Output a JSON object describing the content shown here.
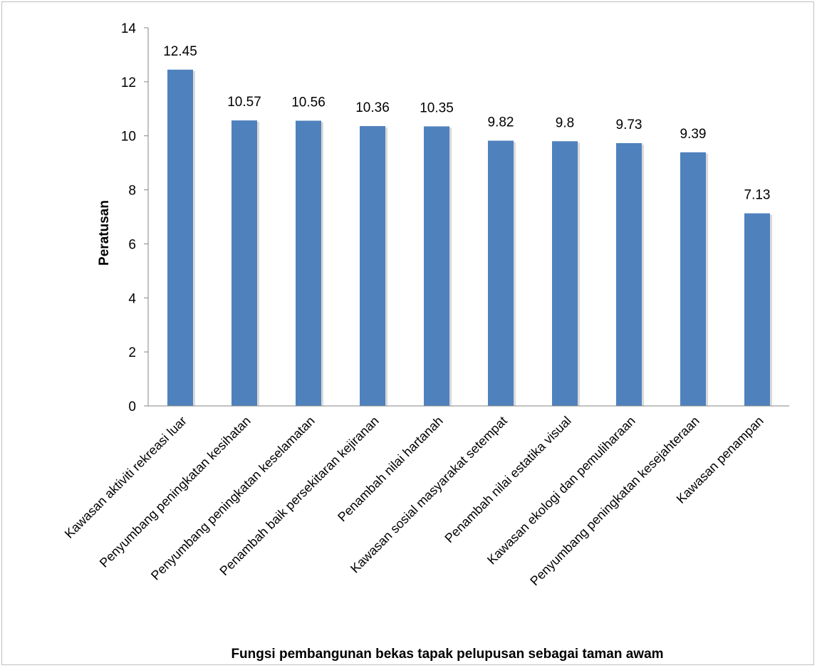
{
  "chart_data": {
    "type": "bar",
    "title": "",
    "xlabel": "Fungsi pembangunan bekas tapak pelupusan sebagai taman awam",
    "ylabel": "Peratusan",
    "ylim": [
      0,
      14
    ],
    "yticks": [
      0,
      2,
      4,
      6,
      8,
      10,
      12,
      14
    ],
    "grid": false,
    "legend": "none",
    "bar_color": "#4f81bd",
    "categories": [
      "Kawasan aktiviti rekreasi luar",
      "Penyumbang peningkatan kesihatan",
      "Penyumbang peningkatan keselamatan",
      "Penambah baik persekitaran kejiranan",
      "Penambah nilai hartanah",
      "Kawasan sosial masyarakat setempat",
      "Penambah nilai estatika visual",
      "Kawasan ekologi dan pemuliharaan",
      "Penyumbang peningkatan kesejahteraan",
      "Kawasan penampan"
    ],
    "values": [
      12.45,
      10.57,
      10.56,
      10.36,
      10.35,
      9.82,
      9.8,
      9.73,
      9.39,
      7.13
    ],
    "data_labels": [
      "12.45",
      "10.57",
      "10.56",
      "10.36",
      "10.35",
      "9.82",
      "9.8",
      "9.73",
      "9.39",
      "7.13"
    ]
  }
}
